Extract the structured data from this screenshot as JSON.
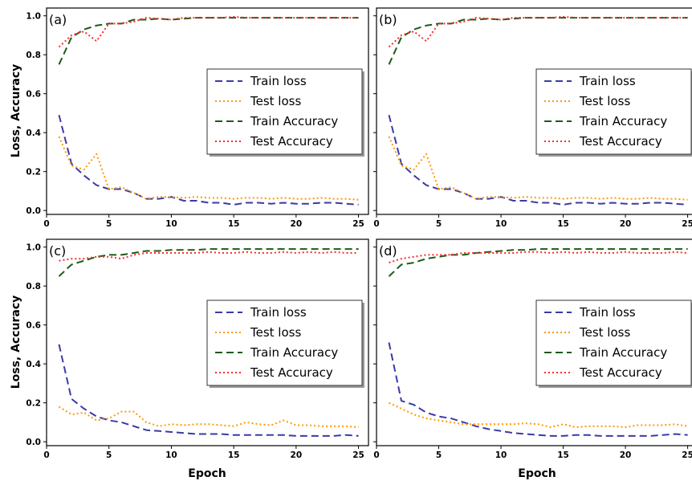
{
  "figure": {
    "ylabel": "Loss, Accuracy",
    "xlabel": "Epoch"
  },
  "chart_data": [
    {
      "type": "line",
      "panel_label": "(a)",
      "xlabel": "",
      "ylabel": "Loss, Accuracy",
      "xlim": [
        0,
        25.8
      ],
      "ylim": [
        -0.02,
        1.04
      ],
      "xticks": [
        0,
        5,
        10,
        15,
        20,
        25
      ],
      "yticks": [
        0.0,
        0.2,
        0.4,
        0.6,
        0.8,
        1.0
      ],
      "ytick_labels": [
        "0.0",
        "0.2",
        "0.4",
        "0.6",
        "0.8",
        "1.0"
      ],
      "grid": false,
      "legend_position": "center-right",
      "x": [
        1,
        2,
        3,
        4,
        5,
        6,
        7,
        8,
        9,
        10,
        11,
        12,
        13,
        14,
        15,
        16,
        17,
        18,
        19,
        20,
        21,
        22,
        23,
        24,
        25
      ],
      "series": [
        {
          "name": "Train loss",
          "color": "#3a3aa8",
          "dash": "dashed",
          "values": [
            0.49,
            0.24,
            0.18,
            0.13,
            0.11,
            0.11,
            0.09,
            0.06,
            0.06,
            0.07,
            0.05,
            0.05,
            0.04,
            0.04,
            0.03,
            0.04,
            0.04,
            0.035,
            0.04,
            0.035,
            0.035,
            0.04,
            0.04,
            0.035,
            0.03
          ]
        },
        {
          "name": "Test loss",
          "color": "#ff9900",
          "dash": "dotted",
          "values": [
            0.38,
            0.23,
            0.21,
            0.29,
            0.11,
            0.12,
            0.09,
            0.06,
            0.07,
            0.07,
            0.065,
            0.07,
            0.065,
            0.065,
            0.06,
            0.065,
            0.065,
            0.06,
            0.065,
            0.06,
            0.06,
            0.065,
            0.06,
            0.06,
            0.055
          ]
        },
        {
          "name": "Train Accuracy",
          "color": "#1a5c1a",
          "dash": "dashed",
          "values": [
            0.75,
            0.89,
            0.93,
            0.95,
            0.96,
            0.96,
            0.98,
            0.98,
            0.985,
            0.98,
            0.985,
            0.99,
            0.99,
            0.99,
            0.99,
            0.99,
            0.99,
            0.99,
            0.99,
            0.99,
            0.99,
            0.99,
            0.99,
            0.99,
            0.99
          ]
        },
        {
          "name": "Test Accuracy",
          "color": "#ff2a2a",
          "dash": "dotted",
          "values": [
            0.84,
            0.9,
            0.92,
            0.87,
            0.96,
            0.96,
            0.97,
            0.99,
            0.985,
            0.98,
            0.99,
            0.99,
            0.99,
            0.99,
            0.995,
            0.99,
            0.99,
            0.99,
            0.99,
            0.99,
            0.99,
            0.99,
            0.99,
            0.99,
            0.99
          ]
        }
      ]
    },
    {
      "type": "line",
      "panel_label": "(b)",
      "xlabel": "",
      "ylabel": "",
      "xlim": [
        0,
        25.8
      ],
      "ylim": [
        -0.02,
        1.04
      ],
      "xticks": [
        0,
        5,
        10,
        15,
        20,
        25
      ],
      "yticks": [
        0.0,
        0.2,
        0.4,
        0.6,
        0.8,
        1.0
      ],
      "ytick_labels": [],
      "grid": false,
      "legend_position": "center-right",
      "x": [
        1,
        2,
        3,
        4,
        5,
        6,
        7,
        8,
        9,
        10,
        11,
        12,
        13,
        14,
        15,
        16,
        17,
        18,
        19,
        20,
        21,
        22,
        23,
        24,
        25
      ],
      "series": [
        {
          "name": "Train loss",
          "color": "#3a3aa8",
          "dash": "dashed",
          "values": [
            0.49,
            0.24,
            0.18,
            0.13,
            0.11,
            0.11,
            0.09,
            0.06,
            0.06,
            0.07,
            0.05,
            0.05,
            0.04,
            0.04,
            0.03,
            0.04,
            0.04,
            0.035,
            0.04,
            0.035,
            0.035,
            0.04,
            0.04,
            0.035,
            0.03
          ]
        },
        {
          "name": "Test loss",
          "color": "#ff9900",
          "dash": "dotted",
          "values": [
            0.38,
            0.23,
            0.21,
            0.29,
            0.11,
            0.12,
            0.09,
            0.06,
            0.07,
            0.07,
            0.065,
            0.07,
            0.065,
            0.065,
            0.06,
            0.065,
            0.065,
            0.06,
            0.065,
            0.06,
            0.06,
            0.065,
            0.06,
            0.06,
            0.055
          ]
        },
        {
          "name": "Train Accuracy",
          "color": "#1a5c1a",
          "dash": "dashed",
          "values": [
            0.75,
            0.89,
            0.93,
            0.95,
            0.96,
            0.96,
            0.98,
            0.98,
            0.985,
            0.98,
            0.985,
            0.99,
            0.99,
            0.99,
            0.99,
            0.99,
            0.99,
            0.99,
            0.99,
            0.99,
            0.99,
            0.99,
            0.99,
            0.99,
            0.99
          ]
        },
        {
          "name": "Test Accuracy",
          "color": "#ff2a2a",
          "dash": "dotted",
          "values": [
            0.84,
            0.9,
            0.92,
            0.87,
            0.96,
            0.96,
            0.97,
            0.99,
            0.985,
            0.98,
            0.99,
            0.99,
            0.99,
            0.99,
            0.995,
            0.99,
            0.99,
            0.99,
            0.99,
            0.99,
            0.99,
            0.99,
            0.99,
            0.99,
            0.99
          ]
        }
      ]
    },
    {
      "type": "line",
      "panel_label": "(c)",
      "xlabel": "Epoch",
      "ylabel": "Loss, Accuracy",
      "xlim": [
        0,
        25.8
      ],
      "ylim": [
        -0.02,
        1.04
      ],
      "xticks": [
        0,
        5,
        10,
        15,
        20,
        25
      ],
      "yticks": [
        0.0,
        0.2,
        0.4,
        0.6,
        0.8,
        1.0
      ],
      "ytick_labels": [
        "0.0",
        "0.2",
        "0.4",
        "0.6",
        "0.8",
        "1.0"
      ],
      "grid": false,
      "legend_position": "center-right",
      "x": [
        1,
        2,
        3,
        4,
        5,
        6,
        7,
        8,
        9,
        10,
        11,
        12,
        13,
        14,
        15,
        16,
        17,
        18,
        19,
        20,
        21,
        22,
        23,
        24,
        25
      ],
      "series": [
        {
          "name": "Train loss",
          "color": "#3a3aa8",
          "dash": "dashed",
          "values": [
            0.5,
            0.22,
            0.17,
            0.13,
            0.11,
            0.1,
            0.08,
            0.06,
            0.055,
            0.05,
            0.045,
            0.04,
            0.04,
            0.04,
            0.035,
            0.035,
            0.035,
            0.035,
            0.035,
            0.03,
            0.03,
            0.03,
            0.03,
            0.035,
            0.03
          ]
        },
        {
          "name": "Test loss",
          "color": "#ff9900",
          "dash": "dotted",
          "values": [
            0.18,
            0.14,
            0.15,
            0.11,
            0.12,
            0.155,
            0.155,
            0.1,
            0.08,
            0.09,
            0.085,
            0.09,
            0.09,
            0.085,
            0.08,
            0.1,
            0.09,
            0.085,
            0.11,
            0.085,
            0.085,
            0.08,
            0.08,
            0.08,
            0.075
          ]
        },
        {
          "name": "Train Accuracy",
          "color": "#1a5c1a",
          "dash": "dashed",
          "values": [
            0.85,
            0.91,
            0.93,
            0.95,
            0.96,
            0.96,
            0.97,
            0.98,
            0.98,
            0.985,
            0.985,
            0.985,
            0.99,
            0.99,
            0.99,
            0.99,
            0.99,
            0.99,
            0.99,
            0.99,
            0.99,
            0.99,
            0.99,
            0.99,
            0.99
          ]
        },
        {
          "name": "Test Accuracy",
          "color": "#ff2a2a",
          "dash": "dotted",
          "values": [
            0.93,
            0.94,
            0.94,
            0.95,
            0.95,
            0.94,
            0.96,
            0.97,
            0.97,
            0.97,
            0.97,
            0.97,
            0.975,
            0.97,
            0.97,
            0.975,
            0.97,
            0.97,
            0.975,
            0.97,
            0.975,
            0.97,
            0.975,
            0.97,
            0.97
          ]
        }
      ]
    },
    {
      "type": "line",
      "panel_label": "(d)",
      "xlabel": "Epoch",
      "ylabel": "",
      "xlim": [
        0,
        25.8
      ],
      "ylim": [
        -0.02,
        1.04
      ],
      "xticks": [
        0,
        5,
        10,
        15,
        20,
        25
      ],
      "yticks": [
        0.0,
        0.2,
        0.4,
        0.6,
        0.8,
        1.0
      ],
      "ytick_labels": [],
      "grid": false,
      "legend_position": "center-right",
      "x": [
        1,
        2,
        3,
        4,
        5,
        6,
        7,
        8,
        9,
        10,
        11,
        12,
        13,
        14,
        15,
        16,
        17,
        18,
        19,
        20,
        21,
        22,
        23,
        24,
        25
      ],
      "series": [
        {
          "name": "Train loss",
          "color": "#3a3aa8",
          "dash": "dashed",
          "values": [
            0.51,
            0.21,
            0.19,
            0.15,
            0.13,
            0.12,
            0.1,
            0.08,
            0.065,
            0.055,
            0.045,
            0.04,
            0.035,
            0.03,
            0.03,
            0.035,
            0.035,
            0.03,
            0.03,
            0.03,
            0.03,
            0.03,
            0.035,
            0.04,
            0.035
          ]
        },
        {
          "name": "Test loss",
          "color": "#ff9900",
          "dash": "dotted",
          "values": [
            0.2,
            0.17,
            0.14,
            0.12,
            0.11,
            0.1,
            0.09,
            0.09,
            0.09,
            0.09,
            0.09,
            0.095,
            0.09,
            0.075,
            0.09,
            0.075,
            0.08,
            0.08,
            0.08,
            0.075,
            0.085,
            0.085,
            0.085,
            0.09,
            0.08
          ]
        },
        {
          "name": "Train Accuracy",
          "color": "#1a5c1a",
          "dash": "dashed",
          "values": [
            0.85,
            0.91,
            0.92,
            0.94,
            0.95,
            0.96,
            0.96,
            0.97,
            0.975,
            0.98,
            0.985,
            0.985,
            0.99,
            0.99,
            0.99,
            0.99,
            0.99,
            0.99,
            0.99,
            0.99,
            0.99,
            0.99,
            0.99,
            0.99,
            0.99
          ]
        },
        {
          "name": "Test Accuracy",
          "color": "#ff2a2a",
          "dash": "dotted",
          "values": [
            0.92,
            0.94,
            0.95,
            0.96,
            0.96,
            0.96,
            0.97,
            0.97,
            0.97,
            0.97,
            0.97,
            0.975,
            0.975,
            0.97,
            0.975,
            0.97,
            0.975,
            0.97,
            0.97,
            0.975,
            0.97,
            0.97,
            0.97,
            0.975,
            0.97
          ]
        }
      ]
    }
  ]
}
